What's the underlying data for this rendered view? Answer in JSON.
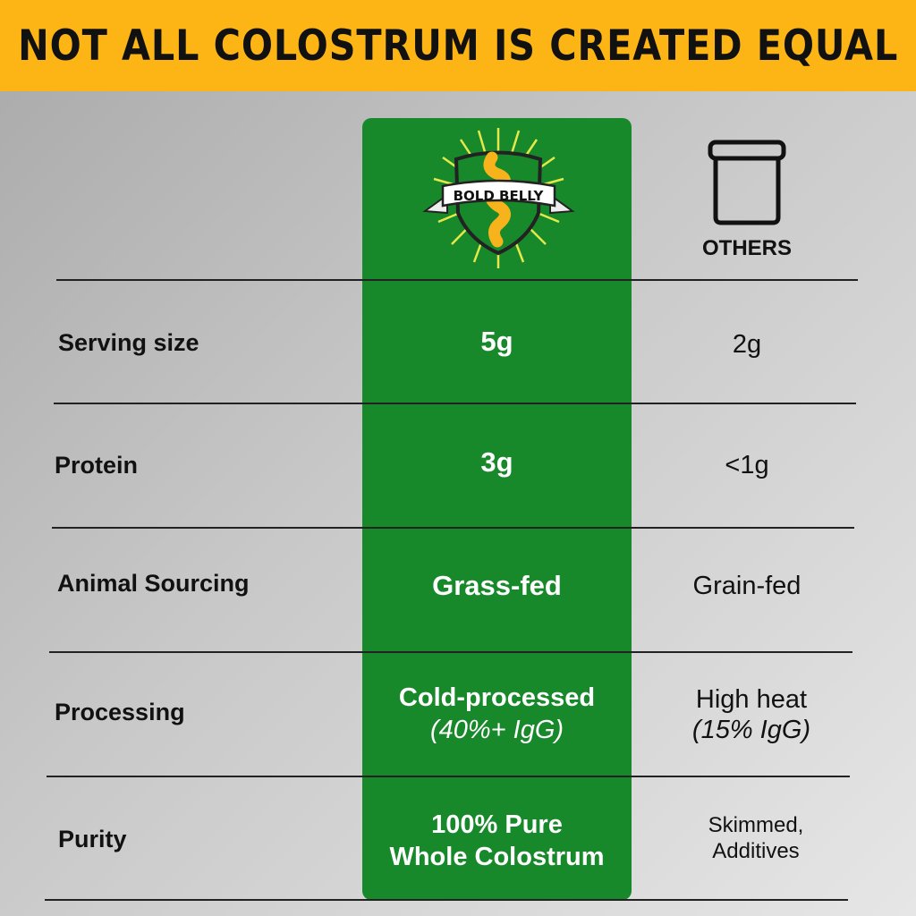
{
  "header": {
    "title": "NOT ALL COLOSTRUM IS CREATED EQUAL"
  },
  "brand": {
    "logo_text": "BOLD BELLY",
    "icon": "bold-belly-shield-logo"
  },
  "others": {
    "label": "OTHERS",
    "icon": "jar-icon"
  },
  "colors": {
    "header": "#FDB515",
    "brand_column": "#17892A",
    "logo_accent": "#F7B31B",
    "rays": "#E5E84A"
  },
  "rows": [
    {
      "label": "Serving size",
      "brand": "5g",
      "brand_sub": "",
      "others": "2g",
      "others_sub": ""
    },
    {
      "label": "Protein",
      "brand": "3g",
      "brand_sub": "",
      "others": "<1g",
      "others_sub": ""
    },
    {
      "label": "Animal Sourcing",
      "brand": "Grass-fed",
      "brand_sub": "",
      "others": "Grain-fed",
      "others_sub": ""
    },
    {
      "label": "Processing",
      "brand": "Cold-processed",
      "brand_sub": "(40%+ IgG)",
      "others": "High heat",
      "others_sub": "(15% IgG)"
    },
    {
      "label": "Purity",
      "brand": "100% Pure",
      "brand_sub": "Whole Colostrum",
      "others": "Skimmed,",
      "others_sub": "Additives"
    }
  ]
}
